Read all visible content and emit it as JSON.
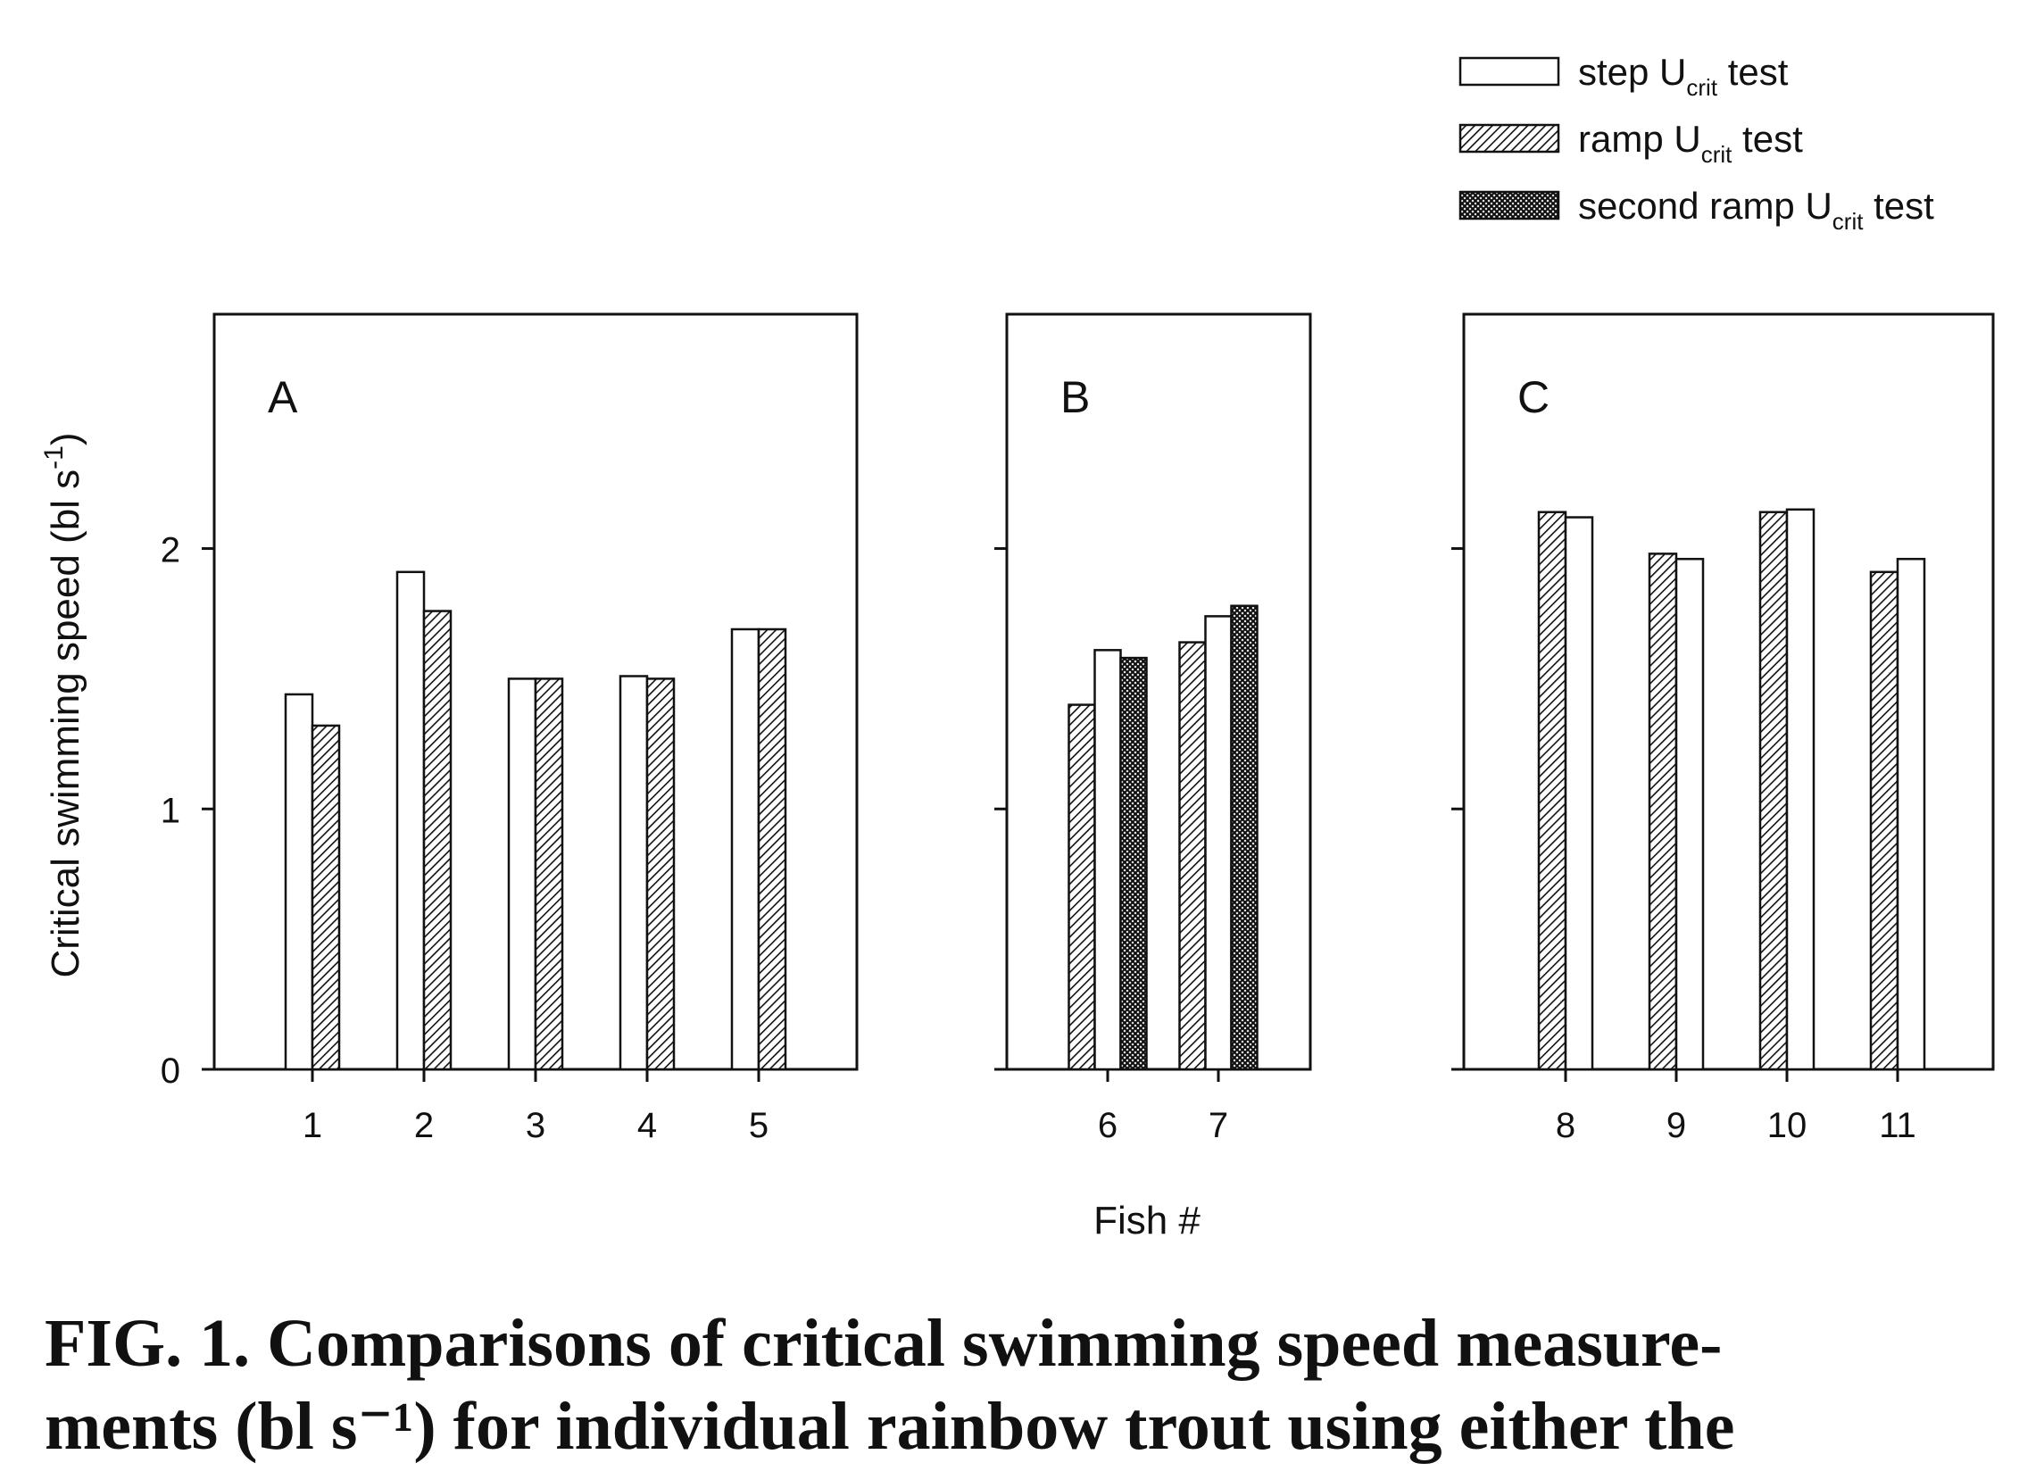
{
  "chart_data": {
    "type": "bar",
    "ylabel": "Critical swimming speed (bl s",
    "ylabel_sup": "-1",
    "ylabel_close": ")",
    "xlabel": "Fish #",
    "ylim": [
      0,
      2.9
    ],
    "yticks": [
      0,
      1,
      2
    ],
    "ytick_labels": [
      "0",
      "1",
      "2"
    ],
    "legend": {
      "placement": "top-right",
      "entries": [
        {
          "key": "step",
          "text": "step U",
          "sub": "crit",
          "suffix": " test",
          "pattern": "open"
        },
        {
          "key": "ramp",
          "text": "ramp U",
          "sub": "crit",
          "suffix": " test",
          "pattern": "hatch"
        },
        {
          "key": "second",
          "text": "second ramp U",
          "sub": "crit",
          "suffix": " test",
          "pattern": "crosshatch"
        }
      ]
    },
    "panels": [
      {
        "label": "A",
        "categories": [
          "1",
          "2",
          "3",
          "4",
          "5"
        ],
        "series_order": [
          "step",
          "ramp"
        ],
        "values": {
          "step": [
            1.44,
            1.91,
            1.5,
            1.51,
            1.69
          ],
          "ramp": [
            1.32,
            1.76,
            1.5,
            1.5,
            1.69
          ]
        }
      },
      {
        "label": "B",
        "categories": [
          "6",
          "7"
        ],
        "series_order": [
          "ramp",
          "step",
          "second"
        ],
        "values": {
          "ramp": [
            1.4,
            1.64
          ],
          "step": [
            1.61,
            1.74
          ],
          "second": [
            1.58,
            1.78
          ]
        }
      },
      {
        "label": "C",
        "categories": [
          "8",
          "9",
          "10",
          "11"
        ],
        "series_order": [
          "ramp",
          "step"
        ],
        "values": {
          "ramp": [
            2.14,
            1.98,
            2.14,
            1.91
          ],
          "step": [
            2.12,
            1.96,
            2.15,
            1.96
          ]
        }
      }
    ]
  },
  "caption": {
    "line1": "FIG. 1. Comparisons of critical swimming speed measure-",
    "line2": "ments (bl s⁻¹) for individual rainbow trout using either the"
  },
  "colors": {
    "ink": "#111111",
    "background": "#ffffff"
  }
}
